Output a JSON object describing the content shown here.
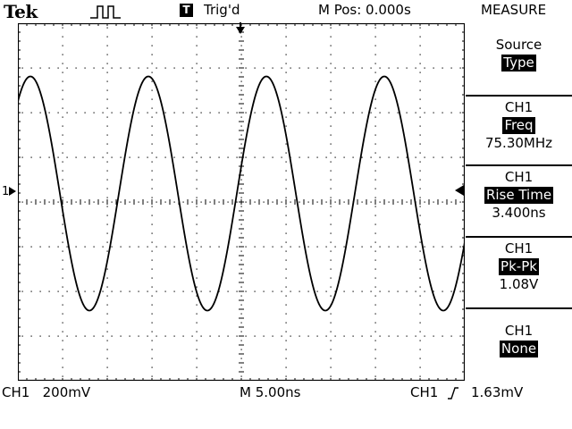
{
  "header": {
    "brand": "Tek",
    "acquire_icon": "square-pulse-icon",
    "trigger_badge": "T",
    "trigger_status": "Trig'd",
    "horizontal_position": "M Pos: 0.000s",
    "menu_title": "MEASURE"
  },
  "screen": {
    "ch1_marker": "1",
    "trigger_position_icon": "down-arrow-icon",
    "trigger_level_icon": "left-arrow-icon"
  },
  "side_menu": {
    "source": {
      "label": "Source",
      "value": "Type"
    },
    "measurements": [
      {
        "channel": "CH1",
        "type": "Freq",
        "value": "75.30MHz"
      },
      {
        "channel": "CH1",
        "type": "Rise Time",
        "value": "3.400ns"
      },
      {
        "channel": "CH1",
        "type": "Pk-Pk",
        "value": "1.08V"
      },
      {
        "channel": "CH1",
        "type": "None",
        "value": ""
      }
    ]
  },
  "footer": {
    "ch1_scale": "CH1   200mV",
    "timebase": "M 5.00ns",
    "trigger_source": "CH1",
    "trigger_slope_icon": "rising-edge-icon",
    "trigger_level": "1.63mV"
  },
  "colors": {
    "background": "#ffffff",
    "trace": "#000000"
  }
}
